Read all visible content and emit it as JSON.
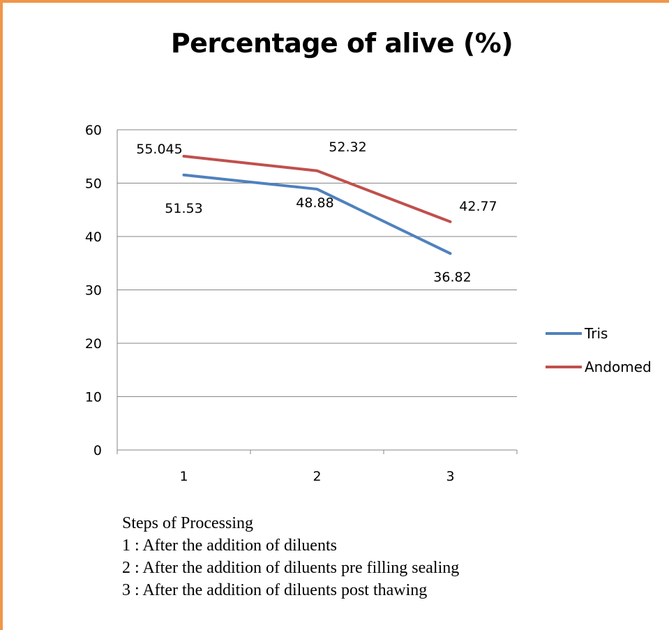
{
  "chart_data": {
    "type": "line",
    "title": "Percentage of alive (%)",
    "categories": [
      "1",
      "2",
      "3"
    ],
    "ylim": [
      0,
      60
    ],
    "yticks": [
      0,
      10,
      20,
      30,
      40,
      50,
      60
    ],
    "grid": true,
    "legend_position": "right",
    "series": [
      {
        "name": "Tris",
        "values": [
          51.53,
          48.88,
          36.82
        ],
        "labels": [
          "51.53",
          "48.88",
          "36.82"
        ],
        "color": "#4f81bd"
      },
      {
        "name": "Andomed",
        "values": [
          55.045,
          52.32,
          42.77
        ],
        "labels": [
          "55.045",
          "52.32",
          "42.77"
        ],
        "color": "#c0504d"
      }
    ]
  },
  "notes": {
    "heading": "Steps of Processing",
    "items": [
      "1 : After the addition of diluents",
      "2 : After the addition of diluents pre filling sealing",
      "3 : After the addition of diluents post thawing"
    ]
  }
}
